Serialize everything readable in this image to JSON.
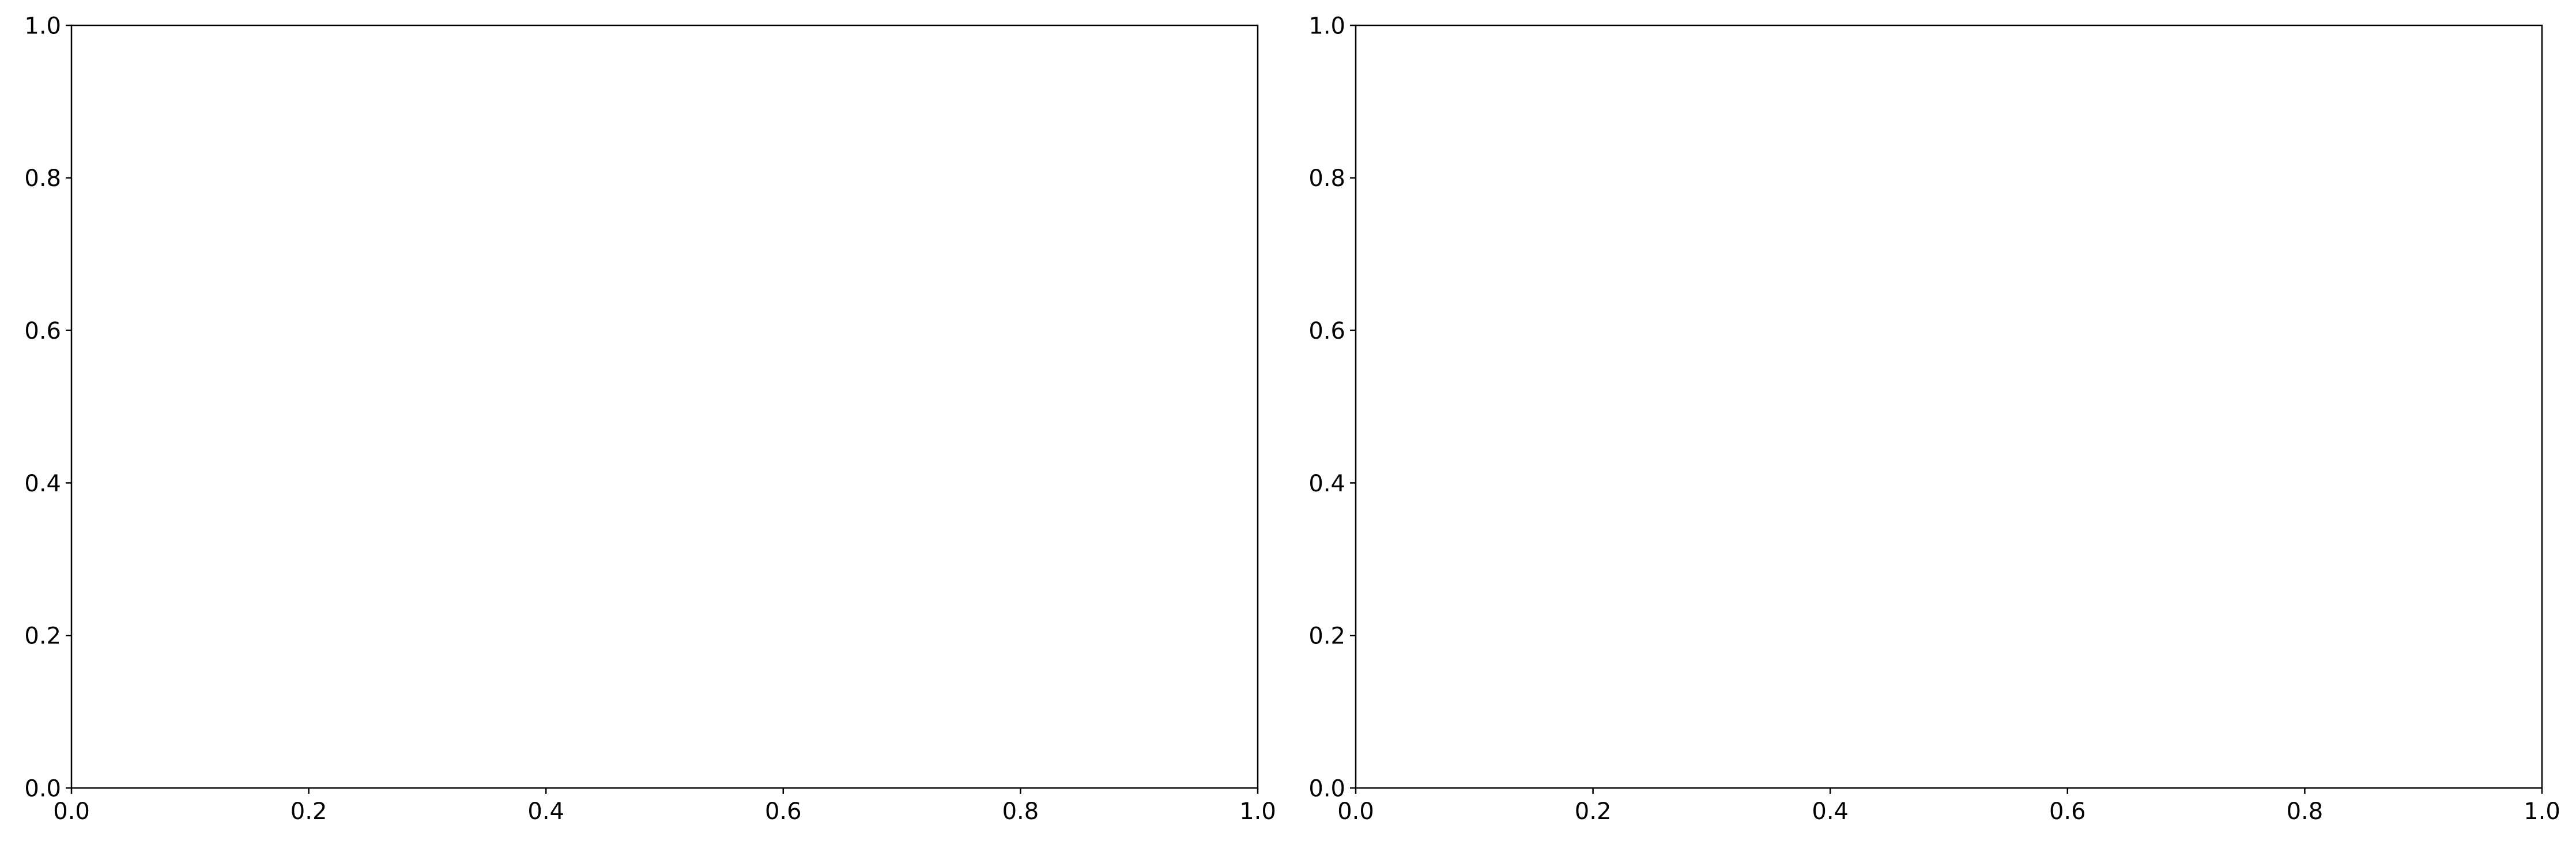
{
  "chart_data": [
    {
      "type": "line",
      "title": "",
      "xlabel": "",
      "ylabel": "",
      "xlim": [
        0.0,
        1.0
      ],
      "ylim": [
        0.0,
        1.0
      ],
      "xticks": [
        "0.0",
        "0.2",
        "0.4",
        "0.6",
        "0.8",
        "1.0"
      ],
      "yticks": [
        "0.0",
        "0.2",
        "0.4",
        "0.6",
        "0.8",
        "1.0"
      ],
      "series": [],
      "grid": false,
      "legend": "none"
    },
    {
      "type": "line",
      "title": "",
      "xlabel": "",
      "ylabel": "",
      "xlim": [
        0.0,
        1.0
      ],
      "ylim": [
        0.0,
        1.0
      ],
      "xticks": [
        "0.0",
        "0.2",
        "0.4",
        "0.6",
        "0.8",
        "1.0"
      ],
      "yticks": [
        "0.0",
        "0.2",
        "0.4",
        "0.6",
        "0.8",
        "1.0"
      ],
      "series": [],
      "grid": false,
      "legend": "none"
    }
  ]
}
